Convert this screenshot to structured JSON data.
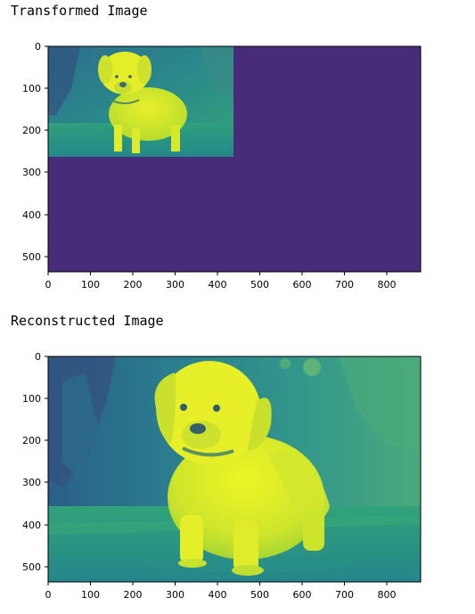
{
  "notebook": {
    "cells": [
      {
        "title": "Transformed Image"
      },
      {
        "title": "Reconstructed Image"
      }
    ]
  },
  "colors": {
    "viridis_dark": "#472c7a",
    "viridis_mid": "#2a788e",
    "viridis_green": "#3aa57a",
    "viridis_yellow": "#d8e219",
    "viridis_bright": "#f0f921"
  },
  "chart_data": [
    {
      "type": "heatmap",
      "title": "Transformed Image",
      "description_of_content": "grayscale image rendered with viridis colormap; top-left quadrant holds a downscaled copy of the puppy photo, remaining area is near-constant dark purple",
      "xlim": [
        0,
        880
      ],
      "ylim": [
        540,
        0
      ],
      "xticks": [
        0,
        100,
        200,
        300,
        400,
        500,
        600,
        700,
        800
      ],
      "yticks": [
        0,
        100,
        200,
        300,
        400,
        500
      ],
      "inset_extent": {
        "x": [
          0,
          440
        ],
        "y": [
          0,
          265
        ]
      }
    },
    {
      "type": "heatmap",
      "title": "Reconstructed Image",
      "xlim": [
        0,
        880
      ],
      "ylim": [
        540,
        0
      ],
      "xticks": [
        0,
        100,
        200,
        300,
        400,
        500,
        600,
        700,
        800
      ],
      "yticks": [
        0,
        100,
        200,
        300,
        400,
        500
      ]
    }
  ]
}
